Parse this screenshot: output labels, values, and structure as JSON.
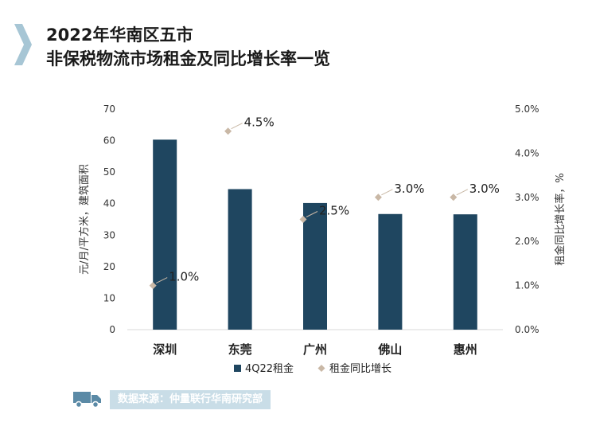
{
  "title": {
    "line1": "2022年华南区五市",
    "line2": "非保税物流市场租金及同比增长率一览"
  },
  "source": "数据来源：仲量联行华南研究部",
  "icons": {
    "title_marker": "chevron-right-icon",
    "source_marker": "truck-icon"
  },
  "colors": {
    "bar": "#1f4660",
    "point": "#c9b8a6",
    "chevron": "#a7c6d5",
    "source_bg": "#c9dde7"
  },
  "chart_data": {
    "type": "bar",
    "categories": [
      "深圳",
      "东莞",
      "广州",
      "佛山",
      "惠州"
    ],
    "series": [
      {
        "name": "4Q22租金",
        "type": "bar",
        "axis": "left",
        "values": [
          60.3,
          44.6,
          40.2,
          36.7,
          36.6
        ]
      },
      {
        "name": "租金同比增长",
        "type": "scatter",
        "axis": "right",
        "values": [
          1.0,
          4.5,
          2.5,
          3.0,
          3.0
        ],
        "labels": [
          "1.0%",
          "4.5%",
          "2.5%",
          "3.0%",
          "3.0%"
        ]
      }
    ],
    "ylabel": "元/月/平方米，建筑面积",
    "y2label": "租金同比增长率，%",
    "ylim": [
      0,
      70
    ],
    "yticks": [
      "0",
      "10",
      "20",
      "30",
      "40",
      "50",
      "60",
      "70"
    ],
    "y2lim": [
      0,
      5
    ],
    "y2ticks": [
      "0.0%",
      "1.0%",
      "2.0%",
      "3.0%",
      "4.0%",
      "5.0%"
    ],
    "legend_position": "bottom",
    "grid": false
  }
}
